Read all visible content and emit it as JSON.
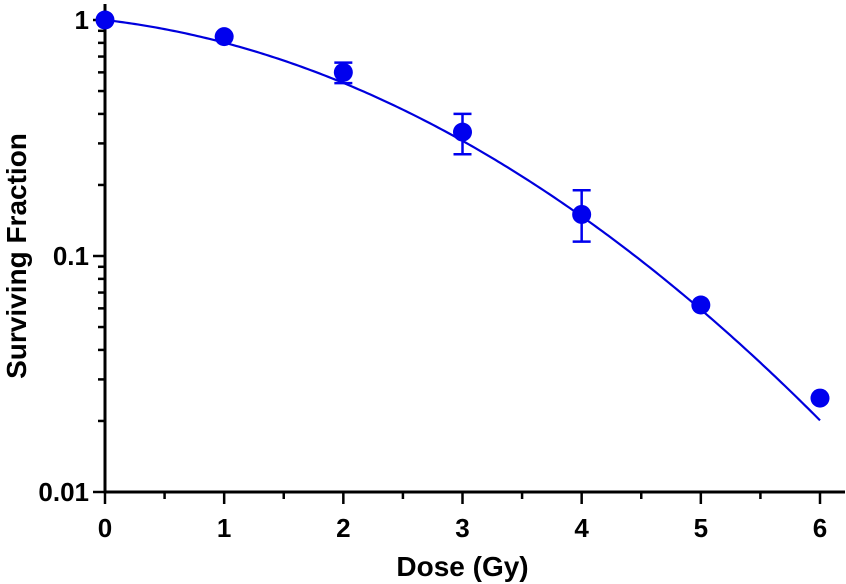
{
  "chart_data": {
    "type": "scatter",
    "xlabel": "Dose (Gy)",
    "ylabel": "Surviving Fraction",
    "xlim": [
      0,
      6
    ],
    "ylim": [
      0.01,
      1
    ],
    "yscale": "log",
    "grid": false,
    "x_ticks": [
      0,
      1,
      2,
      3,
      4,
      5,
      6
    ],
    "x_tick_labels": [
      "0",
      "1",
      "2",
      "3",
      "4",
      "5",
      "6"
    ],
    "y_ticks": [
      0.01,
      0.1,
      1
    ],
    "y_tick_labels": [
      "0.01",
      "0.1",
      "1"
    ],
    "series": [
      {
        "marker_color": "#0000ee",
        "points": [
          {
            "x": 0,
            "y": 1.0,
            "err_low": 1.0,
            "err_high": 1.0
          },
          {
            "x": 1,
            "y": 0.85,
            "err_low": 0.85,
            "err_high": 0.85
          },
          {
            "x": 2,
            "y": 0.6,
            "err_low": 0.54,
            "err_high": 0.66
          },
          {
            "x": 3,
            "y": 0.335,
            "err_low": 0.27,
            "err_high": 0.4
          },
          {
            "x": 4,
            "y": 0.15,
            "err_low": 0.115,
            "err_high": 0.19
          },
          {
            "x": 5,
            "y": 0.062,
            "err_low": 0.062,
            "err_high": 0.062
          },
          {
            "x": 6,
            "y": 0.025,
            "err_low": 0.025,
            "err_high": 0.025
          }
        ],
        "fit": {
          "model": "linear-quadratic",
          "alpha": 0.135,
          "beta": 0.086,
          "line_color": "#0000dd"
        }
      }
    ]
  }
}
